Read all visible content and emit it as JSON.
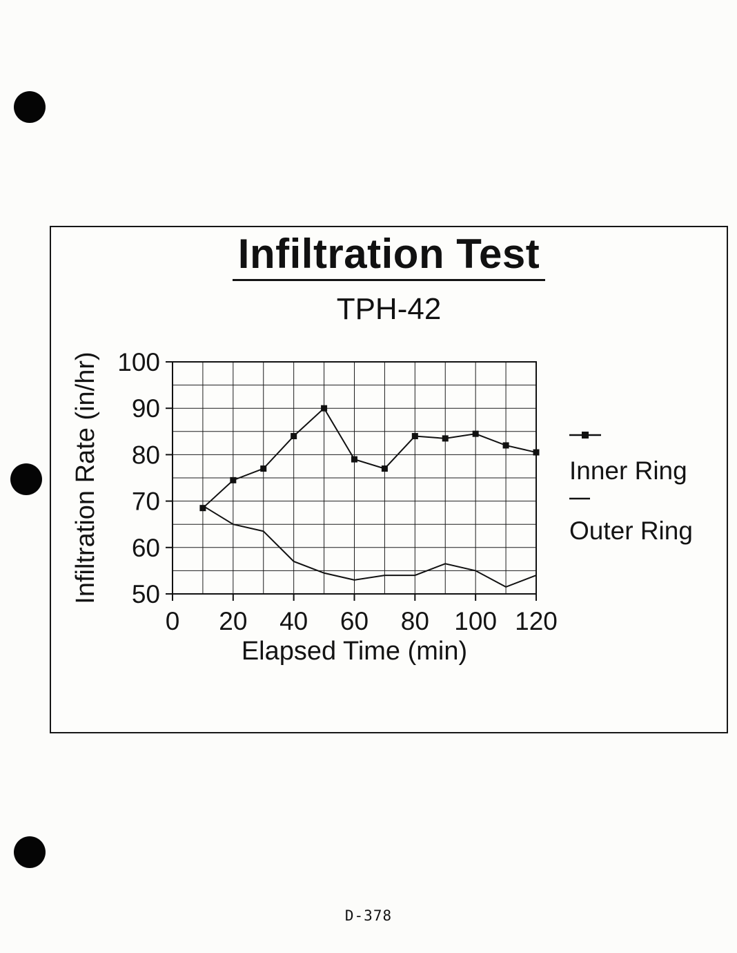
{
  "page": {
    "footer": "D-378"
  },
  "chart_data": {
    "type": "line",
    "title": "Infiltration Test",
    "subtitle": "TPH-42",
    "xlabel": "Elapsed Time (min)",
    "ylabel": "Infiltration Rate (in/hr)",
    "xlim": [
      0,
      120
    ],
    "ylim": [
      50,
      100
    ],
    "x_ticks": [
      0,
      20,
      40,
      60,
      80,
      100,
      120
    ],
    "y_ticks": [
      50,
      60,
      70,
      80,
      90,
      100
    ],
    "x_grid_step": 10,
    "y_grid_step": 5,
    "grid": true,
    "legend_position": "right",
    "x": [
      10,
      20,
      30,
      40,
      50,
      60,
      70,
      80,
      90,
      100,
      110,
      120
    ],
    "series": [
      {
        "name": "Inner Ring",
        "marker": "square",
        "values": [
          68.5,
          74.5,
          77,
          84,
          90,
          79,
          77,
          84,
          83.5,
          84.5,
          82,
          80.5
        ]
      },
      {
        "name": "Outer Ring",
        "marker": "none",
        "values": [
          69,
          65,
          63.5,
          57,
          54.5,
          53,
          54,
          54,
          56.5,
          55,
          51.5,
          54
        ]
      }
    ]
  }
}
